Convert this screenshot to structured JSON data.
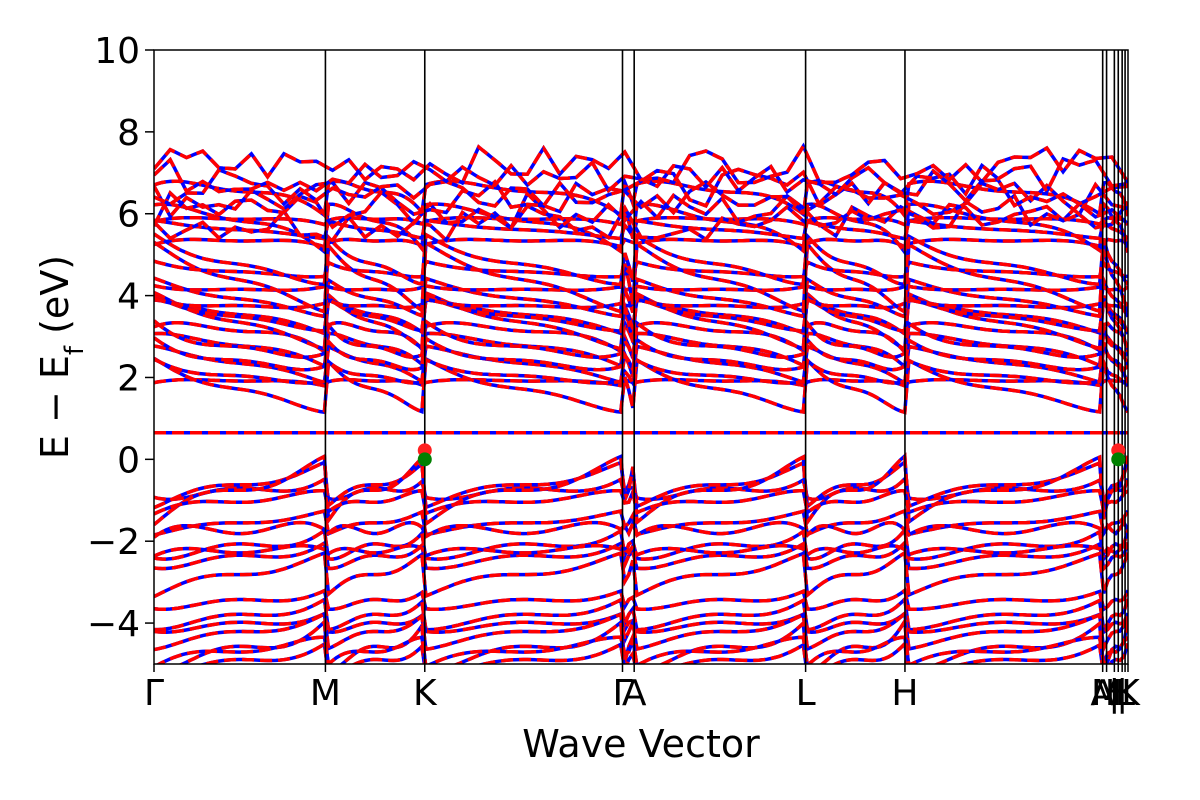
{
  "chart_data": {
    "type": "line",
    "xlabel": "Wave Vector",
    "ylabel": {
      "main": "E − E",
      "sub": "f",
      "unit": " (eV)"
    },
    "ylim": [
      -5,
      10
    ],
    "yticks": [
      {
        "value": -4,
        "label": "−4"
      },
      {
        "value": -2,
        "label": "−2"
      },
      {
        "value": 0,
        "label": "0"
      },
      {
        "value": 2,
        "label": "2"
      },
      {
        "value": 4,
        "label": "4"
      },
      {
        "value": 6,
        "label": "6"
      },
      {
        "value": 8,
        "label": "8"
      },
      {
        "value": 10,
        "label": "10"
      }
    ],
    "xlim": [
      0,
      1
    ],
    "kpoints": [
      {
        "label": "Γ",
        "x": 0.0
      },
      {
        "label": "M",
        "x": 0.176
      },
      {
        "label": "K",
        "x": 0.278
      },
      {
        "label": "Γ",
        "x": 0.481
      },
      {
        "label": "A",
        "x": 0.493
      },
      {
        "label": "L",
        "x": 0.669
      },
      {
        "label": "H",
        "x": 0.771
      },
      {
        "label": "A",
        "x": 0.974
      },
      {
        "label": "M",
        "x": 0.978
      },
      {
        "label": "|",
        "x": 0.986
      },
      {
        "label": "H",
        "x": 0.99
      },
      {
        "label": "|",
        "x": 0.994
      },
      {
        "label": "L",
        "x": 0.997
      },
      {
        "label": "K",
        "x": 1.0
      }
    ],
    "series": [
      {
        "color": "#0000ff",
        "style": "solid"
      },
      {
        "color": "#ff0000",
        "style": "dashed"
      }
    ],
    "markers": [
      {
        "x": 0.278,
        "y": 0.22,
        "color": "#ff2020"
      },
      {
        "x": 0.278,
        "y": 0.0,
        "color": "#008000"
      },
      {
        "x": 0.99,
        "y": 0.22,
        "color": "#ff2020"
      },
      {
        "x": 0.99,
        "y": 0.0,
        "color": "#008000"
      }
    ],
    "grid": false,
    "legend": "none"
  }
}
